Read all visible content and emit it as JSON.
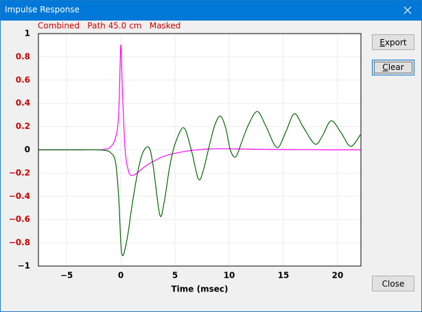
{
  "window": {
    "title": "Impulse Response",
    "buttons": [
      "Export",
      "Clear",
      "Close"
    ]
  },
  "chart_data": {
    "type": "line",
    "title": "Combined   Path 45.0 cm   Masked",
    "xlabel": "Time (msec)",
    "xlim": [
      -7.6,
      22.15
    ],
    "ylim": [
      -1,
      1
    ],
    "xticks": [
      {
        "value": -5,
        "label": "−5"
      },
      0,
      5,
      10,
      15,
      20
    ],
    "yticks": [
      {
        "value": -1,
        "label": "−1"
      },
      {
        "value": -0.8,
        "label": "−0.8"
      },
      {
        "value": -0.6,
        "label": "−0.6"
      },
      {
        "value": -0.4,
        "label": "−0.4"
      },
      {
        "value": -0.2,
        "label": "−0.2"
      },
      0,
      0.2,
      0.4,
      0.6,
      0.8,
      1
    ],
    "ytick_label_colors": [
      "#000000",
      "#cc0000",
      "#cc0000",
      "#cc0000",
      "#cc0000",
      "#000000",
      "#cc0000",
      "#cc0000",
      "#cc0000",
      "#cc0000",
      "#000000"
    ],
    "grid": true,
    "x": [
      -7.6,
      -6,
      -4,
      -2,
      -1.5,
      -1,
      -0.5,
      -0.2,
      0,
      0.15,
      0.4,
      0.7,
      1,
      1.5,
      2,
      2.6,
      3,
      3.6,
      4,
      4.5,
      5,
      5.8,
      6.5,
      7.15,
      7.6,
      8.2,
      8.7,
      9.2,
      9.7,
      10.1,
      10.6,
      11.2,
      11.8,
      12.6,
      13.4,
      14.4,
      15.2,
      16,
      16.8,
      17.9,
      18.6,
      19.4,
      20.3,
      21.2,
      22.1
    ],
    "series": [
      {
        "color": "#ff00ff",
        "values": [
          0,
          0,
          0,
          0,
          0.005,
          0.02,
          0.1,
          0.3,
          0.9,
          0.5,
          0.0,
          -0.18,
          -0.22,
          -0.2,
          -0.16,
          -0.12,
          -0.1,
          -0.07,
          -0.055,
          -0.04,
          -0.03,
          -0.015,
          -0.005,
          0,
          0.005,
          0.008,
          0.01,
          0.01,
          0.01,
          0.01,
          0.008,
          0.008,
          0.006,
          0.005,
          0.004,
          0.003,
          0.002,
          0.002,
          0.001,
          0.001,
          0,
          0,
          0,
          0,
          0
        ]
      },
      {
        "color": "#006400",
        "values": [
          0,
          0,
          0,
          0,
          -0.005,
          -0.02,
          -0.1,
          -0.4,
          -0.8,
          -0.91,
          -0.85,
          -0.7,
          -0.5,
          -0.22,
          -0.03,
          0.02,
          -0.15,
          -0.56,
          -0.45,
          -0.15,
          0.05,
          0.19,
          0.0,
          -0.25,
          -0.18,
          0.05,
          0.22,
          0.29,
          0.18,
          0.0,
          -0.06,
          0.08,
          0.22,
          0.33,
          0.2,
          0.02,
          0.15,
          0.31,
          0.2,
          0.05,
          0.12,
          0.25,
          0.15,
          0.03,
          0.13
        ]
      }
    ]
  }
}
